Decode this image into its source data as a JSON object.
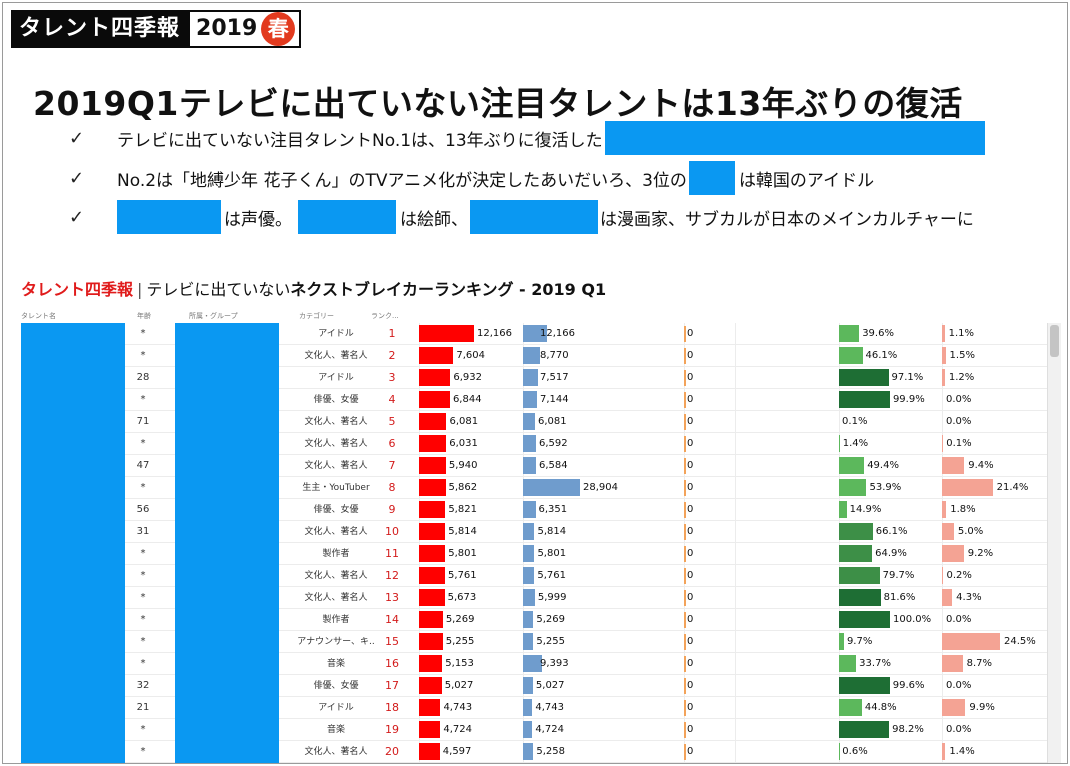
{
  "badge": {
    "title": "タレント四季報",
    "year": "2019",
    "season": "春"
  },
  "headline": "2019Q1テレビに出ていない注目タレントは13年ぶりの復活",
  "bullets": {
    "check": "✓",
    "b1": "テレビに出ていない注目タレントNo.1は、13年ぶりに復活した",
    "b2a": "No.2は「地縛少年 花子くん」のTVアニメ化が決定したあいだいろ、3位の",
    "b2b": "は韓国のアイドル",
    "b3a": "は声優。",
    "b3b": "は絵師、",
    "b3c": "は漫画家、サブカルが日本のメインカルチャーに"
  },
  "chart_title": {
    "brand": "タレント四季報",
    "sep": "|",
    "normal": "テレビに出ていない",
    "strong": "ネクストブレイカーランキング - 2019 Q1"
  },
  "columns": {
    "name": "タレント名",
    "age": "年齢",
    "group": "所属・グループ",
    "category": "カテゴリー",
    "rank": "ランク..."
  },
  "colors": {
    "red": "#ff0000",
    "blue": "#6f9ccd",
    "mask": "#0a98f2",
    "green_light": "#5cb85c",
    "green_dark": "#1e6e34",
    "pink": "#f4a394"
  },
  "rows": [
    {
      "age": "*",
      "category": "アイドル",
      "rank": "1",
      "red": "12,166",
      "blue": "12,166",
      "zero": "0",
      "green": "39.6%",
      "pink": "1.1%"
    },
    {
      "age": "*",
      "category": "文化人、著名人",
      "rank": "2",
      "red": "7,604",
      "blue": "8,770",
      "zero": "0",
      "green": "46.1%",
      "pink": "1.5%"
    },
    {
      "age": "28",
      "category": "アイドル",
      "rank": "3",
      "red": "6,932",
      "blue": "7,517",
      "zero": "0",
      "green": "97.1%",
      "pink": "1.2%"
    },
    {
      "age": "*",
      "category": "俳優、女優",
      "rank": "4",
      "red": "6,844",
      "blue": "7,144",
      "zero": "0",
      "green": "99.9%",
      "pink": "0.0%"
    },
    {
      "age": "71",
      "category": "文化人、著名人",
      "rank": "5",
      "red": "6,081",
      "blue": "6,081",
      "zero": "0",
      "green": "0.1%",
      "pink": "0.0%"
    },
    {
      "age": "*",
      "category": "文化人、著名人",
      "rank": "6",
      "red": "6,031",
      "blue": "6,592",
      "zero": "0",
      "green": "1.4%",
      "pink": "0.1%"
    },
    {
      "age": "47",
      "category": "文化人、著名人",
      "rank": "7",
      "red": "5,940",
      "blue": "6,584",
      "zero": "0",
      "green": "49.4%",
      "pink": "9.4%"
    },
    {
      "age": "*",
      "category": "生主・YouTuber",
      "rank": "8",
      "red": "5,862",
      "blue": "28,904",
      "zero": "0",
      "green": "53.9%",
      "pink": "21.4%"
    },
    {
      "age": "56",
      "category": "俳優、女優",
      "rank": "9",
      "red": "5,821",
      "blue": "6,351",
      "zero": "0",
      "green": "14.9%",
      "pink": "1.8%"
    },
    {
      "age": "31",
      "category": "文化人、著名人",
      "rank": "10",
      "red": "5,814",
      "blue": "5,814",
      "zero": "0",
      "green": "66.1%",
      "pink": "5.0%"
    },
    {
      "age": "*",
      "category": "製作者",
      "rank": "11",
      "red": "5,801",
      "blue": "5,801",
      "zero": "0",
      "green": "64.9%",
      "pink": "9.2%"
    },
    {
      "age": "*",
      "category": "文化人、著名人",
      "rank": "12",
      "red": "5,761",
      "blue": "5,761",
      "zero": "0",
      "green": "79.7%",
      "pink": "0.2%"
    },
    {
      "age": "*",
      "category": "文化人、著名人",
      "rank": "13",
      "red": "5,673",
      "blue": "5,999",
      "zero": "0",
      "green": "81.6%",
      "pink": "4.3%"
    },
    {
      "age": "*",
      "category": "製作者",
      "rank": "14",
      "red": "5,269",
      "blue": "5,269",
      "zero": "0",
      "green": "100.0%",
      "pink": "0.0%"
    },
    {
      "age": "*",
      "category": "アナウンサー、キ..",
      "rank": "15",
      "red": "5,255",
      "blue": "5,255",
      "zero": "0",
      "green": "9.7%",
      "pink": "24.5%"
    },
    {
      "age": "*",
      "category": "音楽",
      "rank": "16",
      "red": "5,153",
      "blue": "9,393",
      "zero": "0",
      "green": "33.7%",
      "pink": "8.7%"
    },
    {
      "age": "32",
      "category": "俳優、女優",
      "rank": "17",
      "red": "5,027",
      "blue": "5,027",
      "zero": "0",
      "green": "99.6%",
      "pink": "0.0%"
    },
    {
      "age": "21",
      "category": "アイドル",
      "rank": "18",
      "red": "4,743",
      "blue": "4,743",
      "zero": "0",
      "green": "44.8%",
      "pink": "9.9%"
    },
    {
      "age": "*",
      "category": "音楽",
      "rank": "19",
      "red": "4,724",
      "blue": "4,724",
      "zero": "0",
      "green": "98.2%",
      "pink": "0.0%"
    },
    {
      "age": "*",
      "category": "文化人、著名人",
      "rank": "20",
      "red": "4,597",
      "blue": "5,258",
      "zero": "0",
      "green": "0.6%",
      "pink": "1.4%"
    }
  ]
}
